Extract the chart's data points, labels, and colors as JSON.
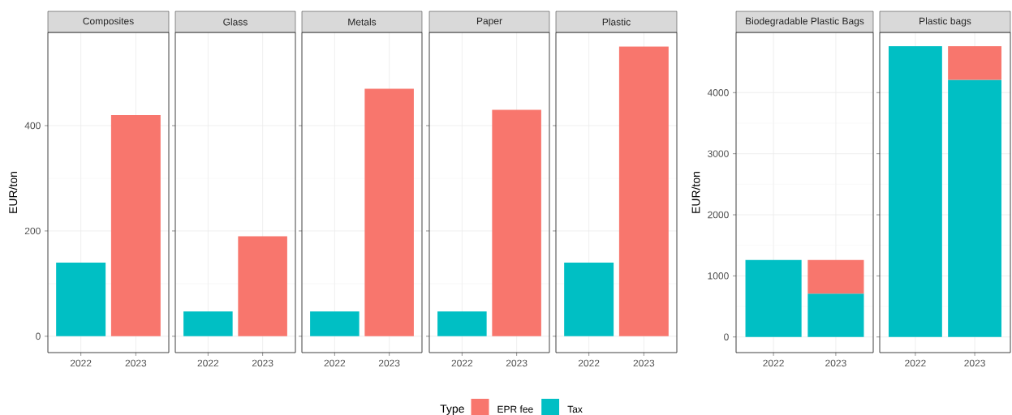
{
  "chart_data": [
    {
      "type": "bar",
      "title": "Composites",
      "ylabel": "EUR/ton",
      "stacked": true,
      "grid": true,
      "legend": "bottom",
      "legend_title": "Type",
      "categories": [
        "2022",
        "2023"
      ],
      "ylim": [
        -31,
        577
      ],
      "yticks": [
        0,
        200,
        400
      ],
      "series": [
        {
          "name": "Tax",
          "color": "#00bfc4",
          "values": [
            140,
            null
          ]
        },
        {
          "name": "EPR fee",
          "color": "#f8766d",
          "values": [
            null,
            420
          ]
        }
      ]
    },
    {
      "type": "bar",
      "title": "Glass",
      "stacked": true,
      "grid": true,
      "tick_labels": "x",
      "categories": [
        "2022",
        "2023"
      ],
      "ylim": [
        -31,
        577
      ],
      "yticks": [
        0,
        200,
        400
      ],
      "series": [
        {
          "color": "#00bfc4",
          "values": [
            47,
            null
          ]
        },
        {
          "color": "#f8766d",
          "values": [
            null,
            190
          ]
        }
      ]
    },
    {
      "type": "bar",
      "title": "Metals",
      "stacked": true,
      "grid": true,
      "tick_labels": "x",
      "categories": [
        "2022",
        "2023"
      ],
      "ylim": [
        -31,
        577
      ],
      "yticks": [
        0,
        200,
        400
      ],
      "series": [
        {
          "color": "#00bfc4",
          "values": [
            47,
            null
          ]
        },
        {
          "color": "#f8766d",
          "values": [
            null,
            470
          ]
        }
      ]
    },
    {
      "type": "bar",
      "title": "Paper",
      "stacked": true,
      "grid": true,
      "tick_labels": "x",
      "categories": [
        "2022",
        "2023"
      ],
      "ylim": [
        -31,
        577
      ],
      "yticks": [
        0,
        200,
        400
      ],
      "series": [
        {
          "color": "#00bfc4",
          "values": [
            47,
            null
          ]
        },
        {
          "color": "#f8766d",
          "values": [
            null,
            430
          ]
        }
      ]
    },
    {
      "type": "bar",
      "title": "Plastic",
      "stacked": true,
      "grid": true,
      "tick_labels": "x",
      "categories": [
        "2022",
        "2023"
      ],
      "ylim": [
        -31,
        577
      ],
      "yticks": [
        0,
        200,
        400
      ],
      "series": [
        {
          "color": "#00bfc4",
          "values": [
            140,
            null
          ]
        },
        {
          "color": "#f8766d",
          "values": [
            null,
            550
          ]
        }
      ]
    },
    {
      "type": "bar",
      "title": "Biodegradable Plastic Bags",
      "ylabel": "EUR/ton",
      "stacked": true,
      "grid": true,
      "categories": [
        "2022",
        "2023"
      ],
      "ylim": [
        -256,
        4986
      ],
      "yticks": [
        0,
        1000,
        2000,
        3000,
        4000
      ],
      "series": [
        {
          "color": "#00bfc4",
          "values": [
            1260,
            710
          ]
        },
        {
          "color": "#f8766d",
          "values": [
            null,
            550
          ]
        }
      ]
    },
    {
      "type": "bar",
      "title": "Plastic bags",
      "stacked": true,
      "grid": true,
      "tick_labels": "x",
      "categories": [
        "2022",
        "2023"
      ],
      "ylim": [
        -256,
        4986
      ],
      "yticks": [
        0,
        1000,
        2000,
        3000,
        4000
      ],
      "series": [
        {
          "color": "#00bfc4",
          "values": [
            4760,
            4210
          ]
        },
        {
          "color": "#f8766d",
          "values": [
            null,
            550
          ]
        }
      ]
    }
  ]
}
